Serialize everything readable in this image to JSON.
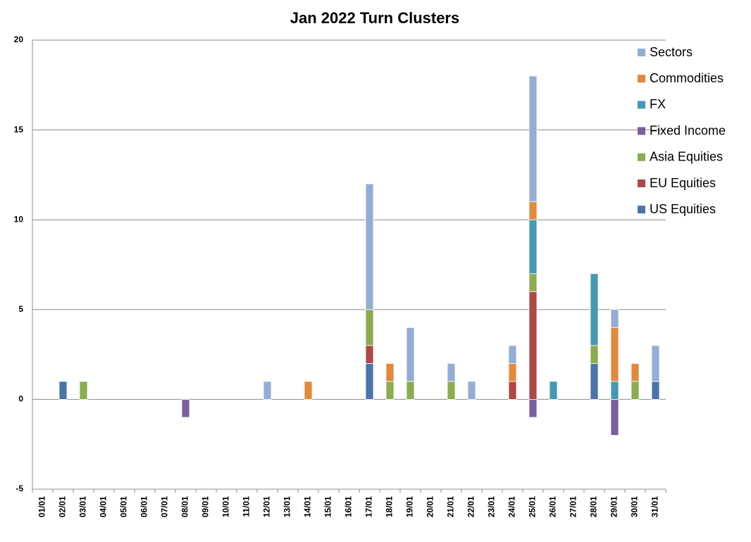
{
  "chart_data": {
    "type": "bar",
    "stacked": true,
    "title": "Jan 2022 Turn Clusters",
    "categories": [
      "01/01",
      "02/01",
      "03/01",
      "04/01",
      "05/01",
      "06/01",
      "07/01",
      "08/01",
      "09/01",
      "10/01",
      "11/01",
      "12/01",
      "13/01",
      "14/01",
      "15/01",
      "16/01",
      "17/01",
      "18/01",
      "19/01",
      "20/01",
      "21/01",
      "22/01",
      "23/01",
      "24/01",
      "25/01",
      "26/01",
      "27/01",
      "28/01",
      "29/01",
      "30/01",
      "31/01"
    ],
    "series": [
      {
        "name": "US Equities",
        "color": "#4a74aa",
        "values": [
          0,
          1,
          0,
          0,
          0,
          0,
          0,
          0,
          0,
          0,
          0,
          0,
          0,
          0,
          0,
          0,
          2,
          0,
          0,
          0,
          0,
          0,
          0,
          0,
          0,
          0,
          0,
          2,
          0,
          0,
          1
        ]
      },
      {
        "name": "EU Equities",
        "color": "#ae4844",
        "values": [
          0,
          0,
          0,
          0,
          0,
          0,
          0,
          0,
          0,
          0,
          0,
          0,
          0,
          0,
          0,
          0,
          1,
          0,
          0,
          0,
          0,
          0,
          0,
          1,
          6,
          0,
          0,
          0,
          0,
          0,
          0
        ]
      },
      {
        "name": "Asia Equities",
        "color": "#8cac4e",
        "values": [
          0,
          0,
          1,
          0,
          0,
          0,
          0,
          0,
          0,
          0,
          0,
          0,
          0,
          0,
          0,
          0,
          2,
          1,
          1,
          0,
          1,
          0,
          0,
          0,
          1,
          0,
          0,
          1,
          0,
          1,
          0
        ]
      },
      {
        "name": "Fixed Income",
        "color": "#7b5fa0",
        "values": [
          0,
          0,
          0,
          0,
          0,
          0,
          0,
          -1,
          0,
          0,
          0,
          0,
          0,
          0,
          0,
          0,
          0,
          0,
          0,
          0,
          0,
          0,
          0,
          0,
          -1,
          0,
          0,
          0,
          -2,
          0,
          0
        ]
      },
      {
        "name": "FX",
        "color": "#4599b0",
        "values": [
          0,
          0,
          0,
          0,
          0,
          0,
          0,
          0,
          0,
          0,
          0,
          0,
          0,
          0,
          0,
          0,
          0,
          0,
          0,
          0,
          0,
          0,
          0,
          0,
          3,
          1,
          0,
          4,
          1,
          0,
          0
        ]
      },
      {
        "name": "Commodities",
        "color": "#e2893a",
        "values": [
          0,
          0,
          0,
          0,
          0,
          0,
          0,
          0,
          0,
          0,
          0,
          0,
          0,
          1,
          0,
          0,
          0,
          1,
          0,
          0,
          0,
          0,
          0,
          1,
          1,
          0,
          0,
          0,
          3,
          1,
          0
        ]
      },
      {
        "name": "Sectors",
        "color": "#95add5",
        "values": [
          0,
          0,
          0,
          0,
          0,
          0,
          0,
          0,
          0,
          0,
          0,
          1,
          0,
          0,
          0,
          0,
          7,
          0,
          3,
          0,
          1,
          1,
          0,
          1,
          7,
          0,
          0,
          0,
          1,
          0,
          2
        ]
      }
    ],
    "ylim": [
      -5,
      20
    ],
    "yticks": [
      -5,
      0,
      5,
      10,
      15,
      20
    ],
    "grid": true,
    "legend": "right"
  }
}
